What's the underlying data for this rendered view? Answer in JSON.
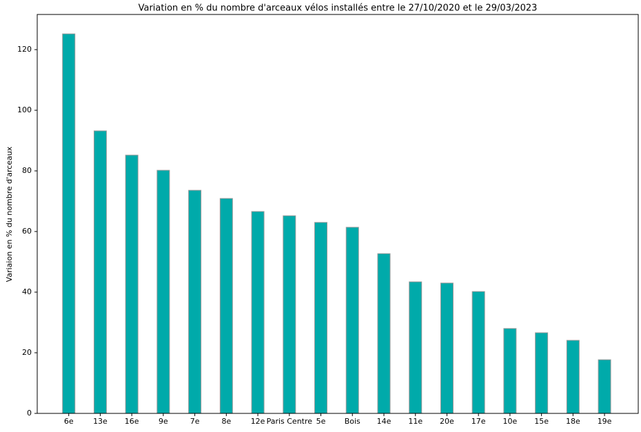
{
  "chart_data": {
    "type": "bar",
    "title": "Variation en % du nombre d'arceaux vélos installés entre le 27/10/2020 et le 29/03/2023",
    "y_label": "Variaion en % du nombre d'arceaux",
    "categories": [
      "6e",
      "13e",
      "16e",
      "9e",
      "7e",
      "8e",
      "12e",
      "Paris Centre",
      "5e",
      "Bois",
      "14e",
      "11e",
      "20e",
      "17e",
      "10e",
      "15e",
      "18e",
      "19e"
    ],
    "values": [
      125.2,
      93.2,
      85.2,
      80.2,
      73.6,
      70.9,
      66.6,
      65.2,
      63.0,
      61.4,
      52.7,
      43.4,
      43.0,
      40.2,
      28.0,
      26.6,
      24.1,
      17.7
    ],
    "color": "#00aaaa",
    "edge_color": "#999999",
    "ylim": [
      0,
      131.6
    ],
    "yticks": [
      0,
      20,
      40,
      60,
      80,
      100,
      120
    ],
    "grid": false
  }
}
